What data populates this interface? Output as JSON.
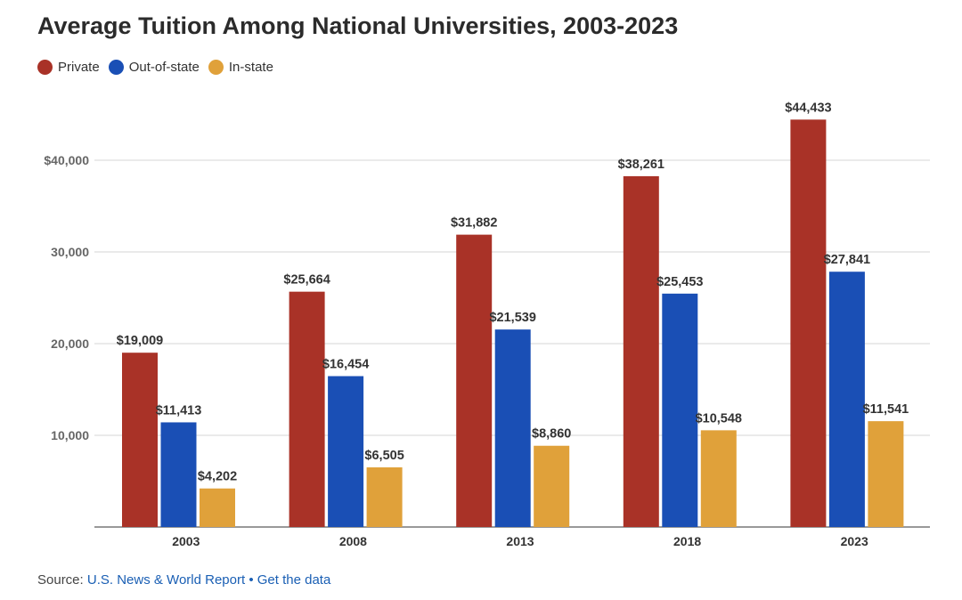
{
  "header": {
    "title": "Average Tuition Among National Universities, 2003-2023"
  },
  "legend": {
    "items": [
      {
        "label": "Private",
        "color": "#a93227"
      },
      {
        "label": "Out-of-state",
        "color": "#1a4fb5"
      },
      {
        "label": "In-state",
        "color": "#e0a13a"
      }
    ]
  },
  "footer": {
    "source_prefix": "Source: ",
    "source_link": "U.S. News & World Report",
    "separator": " • ",
    "data_link": "Get the data"
  },
  "chart_data": {
    "type": "bar",
    "title": "Average Tuition Among National Universities, 2003-2023",
    "xlabel": "",
    "ylabel": "",
    "categories": [
      "2003",
      "2008",
      "2013",
      "2018",
      "2023"
    ],
    "ylim": [
      0,
      50000
    ],
    "yticks": [
      10000,
      20000,
      30000,
      40000
    ],
    "ytick_labels": [
      "10,000",
      "20,000",
      "30,000",
      "$40,000"
    ],
    "grid": true,
    "legend_position": "top-left",
    "series": [
      {
        "name": "Private",
        "color": "#a93227",
        "values": [
          19009,
          25664,
          31882,
          38261,
          44433
        ],
        "labels": [
          "$19,009",
          "$25,664",
          "$31,882",
          "$38,261",
          "$44,433"
        ]
      },
      {
        "name": "Out-of-state",
        "color": "#1a4fb5",
        "values": [
          11413,
          16454,
          21539,
          25453,
          27841
        ],
        "labels": [
          "$11,413",
          "$16,454",
          "$21,539",
          "$25,453",
          "$27,841"
        ]
      },
      {
        "name": "In-state",
        "color": "#e0a13a",
        "values": [
          4202,
          6505,
          8860,
          10548,
          11541
        ],
        "labels": [
          "$4,202",
          "$6,505",
          "$8,860",
          "$10,548",
          "$11,541"
        ]
      }
    ]
  }
}
